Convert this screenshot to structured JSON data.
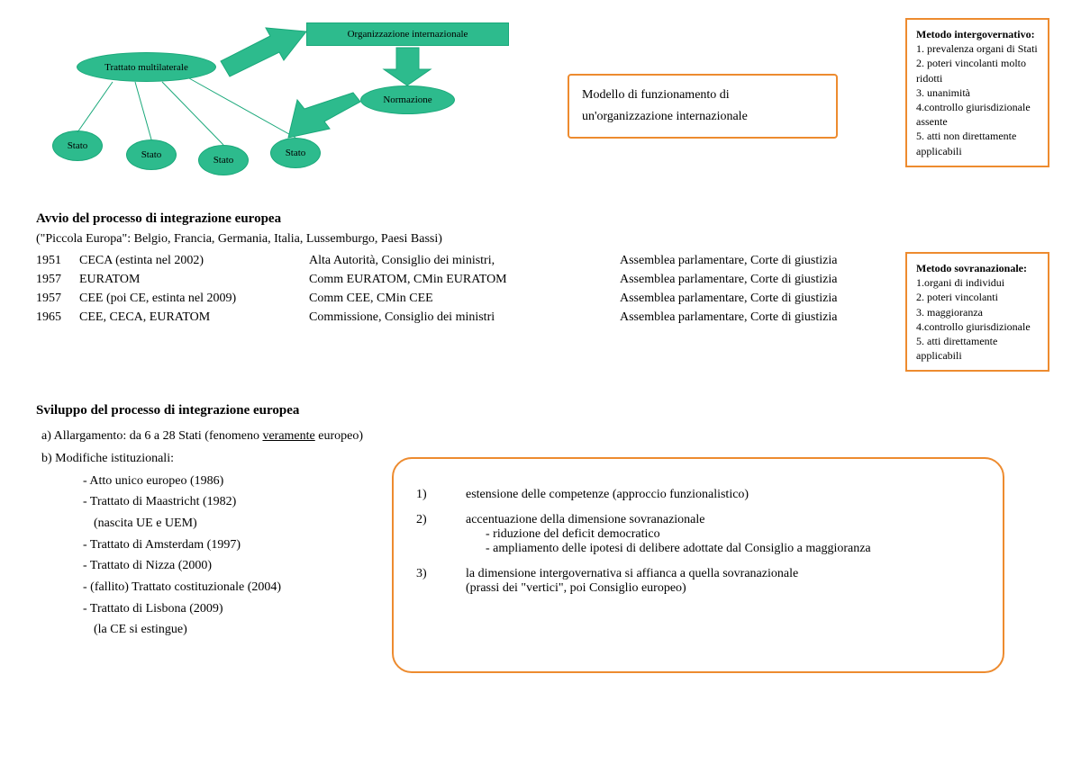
{
  "diagram": {
    "trattato": "Trattato multilaterale",
    "org": "Organizzazione internazionale",
    "norm": "Normazione",
    "stato": "Stato",
    "colors": {
      "fill": "#2dbb8d",
      "stroke": "#1aa87a"
    }
  },
  "model_box": "Modello di funzionamento di un'organizzazione internazionale",
  "side_intergov": {
    "title": "Metodo intergovernativo:",
    "items": [
      "1. prevalenza organi di Stati",
      "2. poteri vincolanti molto ridotti",
      "3. unanimità",
      "4.controllo giurisdizionale assente",
      "5. atti non direttamente applicabili"
    ]
  },
  "side_sovra": {
    "title": "Metodo sovranazionale:",
    "items": [
      "1.organi di individui",
      "2. poteri vincolanti",
      "3. maggioranza",
      "4.controllo giurisdizionale",
      "5. atti direttamente applicabili"
    ]
  },
  "avvio": {
    "title": "Avvio del processo di integrazione europea",
    "subtitle": "(\"Piccola Europa\": Belgio, Francia, Germania, Italia, Lussemburgo, Paesi Bassi)",
    "rows": [
      {
        "year": "1951",
        "org": "CECA (estinta nel 2002)",
        "inst": "Alta Autorità, Consiglio dei ministri,",
        "ass": "Assemblea parlamentare, Corte di giustizia"
      },
      {
        "year": "1957",
        "org": "EURATOM",
        "inst": "Comm EURATOM, CMin EURATOM",
        "ass": "Assemblea parlamentare, Corte di giustizia"
      },
      {
        "year": "1957",
        "org": "CEE (poi CE, estinta nel 2009)",
        "inst": "Comm CEE, CMin CEE",
        "ass": "Assemblea parlamentare, Corte di giustizia"
      },
      {
        "year": "1965",
        "org": "CEE, CECA, EURATOM",
        "inst": "Commissione, Consiglio dei ministri",
        "ass": "Assemblea parlamentare, Corte di giustizia"
      }
    ]
  },
  "sviluppo": {
    "title": "Sviluppo del processo di integrazione europea",
    "a_pre": "a) Allargamento: da 6 a 28 Stati (fenomeno ",
    "a_under": "veramente",
    "a_post": " europeo)",
    "b": "b) Modifiche istituzionali:",
    "items": [
      "Atto unico europeo (1986)",
      "Trattato di Maastricht (1982)",
      "(nascita UE e UEM)",
      "Trattato di Amsterdam (1997)",
      "Trattato di Nizza  (2000)",
      "(fallito) Trattato costituzionale (2004)",
      "Trattato di Lisbona (2009)",
      "(la CE si estingue)"
    ]
  },
  "changes": {
    "n1": "estensione delle competenze (approccio funzionalistico)",
    "n2": "accentuazione della dimensione sovranazionale",
    "n2a": "- riduzione del deficit democratico",
    "n2b": "- ampliamento delle ipotesi di delibere adottate dal Consiglio a maggioranza",
    "n3": "la dimensione intergovernativa si affianca a quella sovranazionale",
    "n3a": "(prassi dei \"vertici\", poi Consiglio europeo)"
  }
}
